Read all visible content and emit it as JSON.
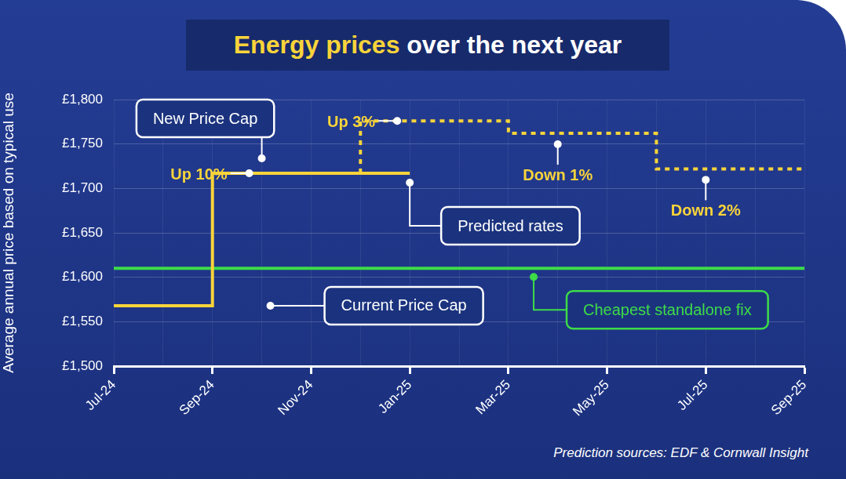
{
  "chart_data": {
    "type": "step",
    "title": "Energy prices over the next year",
    "y_label": "Average annual price based on typical use",
    "source": "Prediction sources: EDF & Cornwall Insight",
    "categories": [
      "Jul-24",
      null,
      "Sep-24",
      null,
      "Nov-24",
      null,
      "Jan-25",
      null,
      "Mar-25",
      null,
      "May-25",
      null,
      "Jul-25",
      null,
      "Sep-25"
    ],
    "series": [
      {
        "name": "Current Price Cap",
        "color": "#f9d43a",
        "line_style": "solid",
        "values": [
          1568,
          1568,
          1568,
          1717,
          1717,
          1717,
          1717,
          null,
          null,
          null,
          null,
          null,
          null,
          null,
          null
        ]
      },
      {
        "name": "Predicted rates",
        "color": "#f9d43a",
        "line_style": "dotted",
        "values": [
          null,
          null,
          null,
          null,
          null,
          1717,
          1776,
          1776,
          1776,
          1762,
          1762,
          1762,
          1722,
          1722,
          1722
        ]
      },
      {
        "name": "Cheapest standalone fix",
        "color": "#3ddc48",
        "line_style": "solid",
        "values": [
          1610,
          1610,
          1610,
          1610,
          1610,
          1610,
          1610,
          1610,
          1610,
          1610,
          1610,
          1610,
          1610,
          1610,
          1610
        ]
      }
    ],
    "annotations": [
      "New Price Cap",
      "Up 10%",
      "Up 3%",
      "Down 1%",
      "Down 2%"
    ],
    "ylim": [
      1500,
      1800
    ],
    "yticks": [
      {
        "value": 1500,
        "label": "£1,500"
      },
      {
        "value": 1550,
        "label": "£1,550"
      },
      {
        "value": 1600,
        "label": "£1,600"
      },
      {
        "value": 1650,
        "label": "£1,650"
      },
      {
        "value": 1700,
        "label": "£1,700"
      },
      {
        "value": 1750,
        "label": "£1,750"
      },
      {
        "value": 1800,
        "label": "£1,800"
      }
    ],
    "grid": true
  }
}
